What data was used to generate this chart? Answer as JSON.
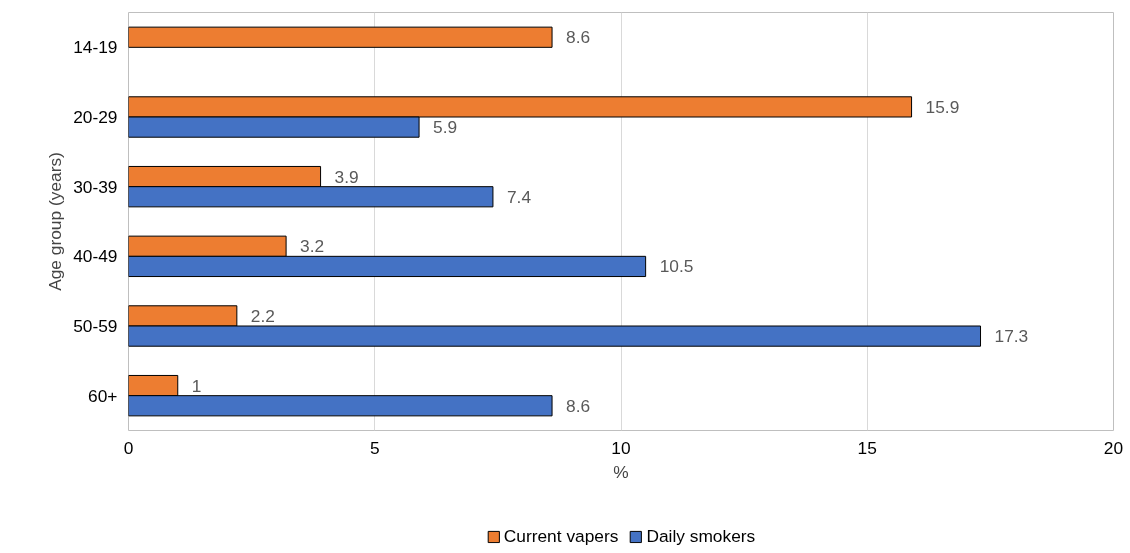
{
  "chart_data": {
    "type": "bar",
    "orientation": "horizontal",
    "xlabel": "%",
    "ylabel": "Age group (years)",
    "categories": [
      "14-19",
      "20-29",
      "30-39",
      "40-49",
      "50-59",
      "60+"
    ],
    "series": [
      {
        "name": "Current vapers",
        "color": "#ed7d31",
        "values": [
          8.6,
          15.9,
          3.9,
          3.2,
          2.2,
          1
        ]
      },
      {
        "name": "Daily smokers",
        "color": "#4472c4",
        "values": [
          null,
          5.9,
          7.4,
          10.5,
          17.3,
          8.6
        ]
      }
    ],
    "xlim": [
      0,
      20
    ],
    "xticks": [
      0,
      5,
      10,
      15,
      20
    ],
    "grid": "x",
    "legend": "bottom",
    "data_labels": true
  }
}
